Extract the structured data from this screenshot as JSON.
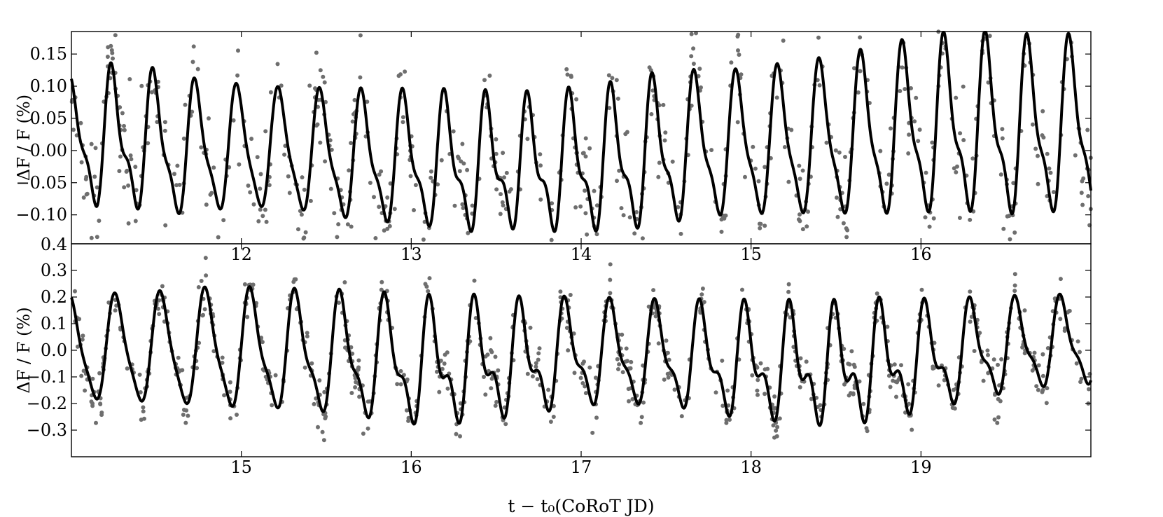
{
  "chart_data": [
    {
      "type": "scatter",
      "panel": "top",
      "ylabel": "ΔF / F (%)",
      "xlim": [
        11.0,
        17.0
      ],
      "ylim": [
        -0.145,
        0.185
      ],
      "xticks": [
        12,
        13,
        14,
        15,
        16
      ],
      "xtick_labels": [
        "12",
        "13",
        "14",
        "15",
        "16"
      ],
      "yticks": [
        -0.1,
        -0.05,
        0.0,
        0.05,
        0.1,
        0.15
      ],
      "ytick_labels": [
        "−0.10",
        "−0.05",
        "0.00",
        "0.05",
        "0.10",
        "0.15"
      ],
      "extra_tick_label": "0.4",
      "grid": false,
      "model": {
        "period": 0.245,
        "x": [
          11.0,
          11.06,
          11.15,
          11.27,
          11.45,
          11.62,
          11.85,
          12.0,
          12.25,
          12.5,
          12.8,
          13.1,
          13.35,
          13.6,
          13.85,
          14.15,
          14.4,
          14.65,
          14.9,
          15.2,
          15.45,
          15.7,
          16.0,
          16.25,
          16.5,
          16.75,
          17.0
        ],
        "mid": [
          0.02,
          0.02,
          0.01,
          0.015,
          0.01,
          0.0,
          0.0,
          0.0,
          0.0,
          -0.01,
          -0.015,
          -0.02,
          -0.025,
          -0.025,
          -0.025,
          -0.02,
          -0.01,
          0.0,
          0.005,
          0.01,
          0.015,
          0.02,
          0.03,
          0.035,
          0.03,
          0.03,
          0.035
        ],
        "amp": [
          0.08,
          0.085,
          0.09,
          0.095,
          0.095,
          0.095,
          0.09,
          0.09,
          0.085,
          0.09,
          0.09,
          0.09,
          0.09,
          0.085,
          0.09,
          0.095,
          0.1,
          0.1,
          0.1,
          0.105,
          0.11,
          0.115,
          0.12,
          0.12,
          0.12,
          0.12,
          0.12
        ],
        "second_amp": [
          0.025,
          0.03,
          0.035,
          0.04,
          0.035,
          0.03,
          0.025,
          0.02,
          0.02,
          0.025,
          0.03,
          0.035,
          0.04,
          0.04,
          0.04,
          0.04,
          0.04,
          0.035,
          0.03,
          0.03,
          0.03,
          0.035,
          0.04,
          0.045,
          0.045,
          0.04,
          0.04
        ]
      },
      "observations": {
        "count": 700,
        "scatter_sigma": 0.045
      }
    },
    {
      "type": "scatter",
      "panel": "bottom",
      "ylabel": "ΔF / F (%)",
      "xlabel": "t − t₀(CoRoT JD)",
      "xlim": [
        14.0,
        20.0
      ],
      "ylim": [
        -0.4,
        0.4
      ],
      "xticks": [
        15,
        16,
        17,
        18,
        19
      ],
      "xtick_labels": [
        "15",
        "16",
        "17",
        "18",
        "19"
      ],
      "yticks": [
        -0.3,
        -0.2,
        -0.1,
        0.0,
        0.1,
        0.2,
        0.3
      ],
      "ytick_labels": [
        "−0.3",
        "−0.2",
        "−0.1",
        "0.0",
        "0.1",
        "0.2",
        "0.3"
      ],
      "grid": false,
      "model": {
        "period": 0.265,
        "x": [
          14.0,
          14.3,
          14.6,
          14.9,
          15.2,
          15.5,
          15.8,
          16.1,
          16.4,
          16.7,
          17.0,
          17.3,
          17.6,
          17.9,
          18.2,
          18.5,
          18.8,
          19.1,
          19.4,
          19.7,
          20.0
        ],
        "mid": [
          0.0,
          0.0,
          0.0,
          0.0,
          -0.01,
          -0.02,
          -0.04,
          -0.06,
          -0.05,
          -0.04,
          -0.02,
          -0.02,
          -0.03,
          -0.05,
          -0.06,
          -0.07,
          -0.05,
          -0.03,
          0.0,
          0.02,
          0.03
        ],
        "amp": [
          0.18,
          0.19,
          0.2,
          0.21,
          0.2,
          0.2,
          0.2,
          0.19,
          0.18,
          0.17,
          0.17,
          0.17,
          0.17,
          0.17,
          0.17,
          0.17,
          0.17,
          0.16,
          0.16,
          0.15,
          0.15
        ],
        "second_amp": [
          0.04,
          0.04,
          0.04,
          0.05,
          0.06,
          0.07,
          0.08,
          0.1,
          0.1,
          0.09,
          0.07,
          0.06,
          0.07,
          0.09,
          0.1,
          0.11,
          0.1,
          0.08,
          0.06,
          0.05,
          0.05
        ]
      },
      "observations": {
        "count": 900,
        "scatter_sigma": 0.05
      }
    }
  ]
}
